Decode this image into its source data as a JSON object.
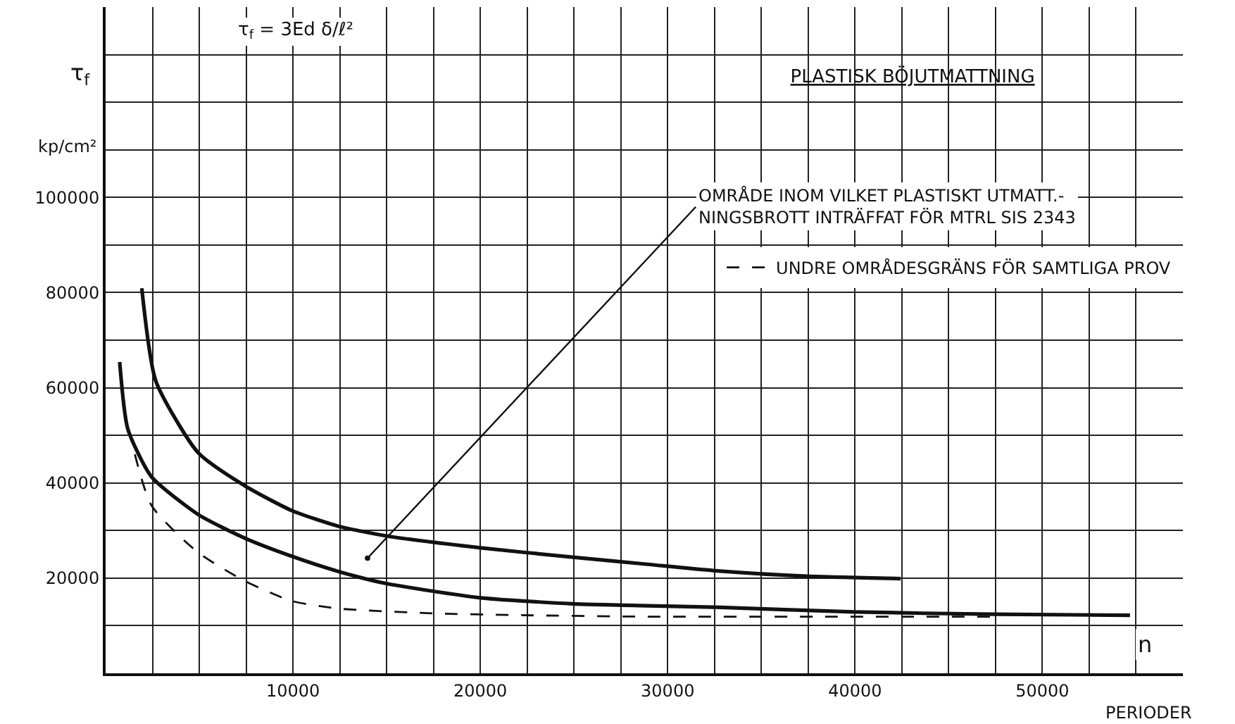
{
  "chart_data": {
    "type": "line",
    "title": "PLASTISK BÖJUTMATTNING",
    "xlabel": "n",
    "ylabel": "τ$_{f}$",
    "xlim": [
      0,
      57500
    ],
    "ylim": [
      0,
      140000
    ],
    "xticks": [
      {
        "value": 2500,
        "label": null
      },
      {
        "value": 5000,
        "label": null
      },
      {
        "value": 7500,
        "label": null
      },
      10000,
      {
        "value": 12500,
        "label": null
      },
      {
        "value": 15000,
        "label": null
      },
      {
        "value": 17500,
        "label": null
      },
      20000,
      {
        "value": 22500,
        "label": null
      },
      {
        "value": 25000,
        "label": null
      },
      {
        "value": 27500,
        "label": null
      },
      30000,
      {
        "value": 32500,
        "label": null
      },
      {
        "value": 35000,
        "label": null
      },
      {
        "value": 37500,
        "label": null
      },
      40000,
      {
        "value": 42500,
        "label": null
      },
      {
        "value": 45000,
        "label": null
      },
      {
        "value": 47500,
        "label": null
      },
      50000,
      {
        "value": 52500,
        "label": null
      },
      {
        "value": 55000,
        "label": null
      }
    ],
    "yticks": [
      {
        "value": 10000,
        "label": null
      },
      20000,
      {
        "value": 30000,
        "label": null
      },
      40000,
      {
        "value": 50000,
        "label": null
      },
      60000,
      {
        "value": 70000,
        "label": null
      },
      80000,
      {
        "value": 90000,
        "label": null
      },
      100000,
      {
        "value": 110000,
        "label": null
      },
      {
        "value": 120000,
        "label": null
      },
      {
        "value": 130000,
        "label": null
      }
    ],
    "grid": true,
    "legend": "top right",
    "marker": "none",
    "series": [
      {
        "color": "#111111",
        "line_style": "solid",
        "x": [
          1930,
          2680,
          4930,
          7430,
          9930,
          12430,
          14930,
          19930,
          24930,
          28930,
          32430,
          37430,
          42430
        ],
        "values": [
          80900,
          61400,
          46400,
          39400,
          34200,
          30900,
          28900,
          26400,
          24400,
          22900,
          21600,
          20400,
          19900
        ]
      },
      {
        "color": "#111111",
        "line_style": "solid",
        "x": [
          750,
          1180,
          2430,
          4930,
          7430,
          9930,
          12430,
          14930,
          19930,
          24930,
          28930,
          32430,
          39930,
          47430,
          54680
        ],
        "values": [
          65400,
          51400,
          41400,
          33400,
          28400,
          24600,
          21400,
          18900,
          15900,
          14600,
          14200,
          13900,
          12900,
          12400,
          12200
        ]
      },
      {
        "name": "UNDRE OMRÅDESGRÄNS FÖR SAMTLIGA PROV",
        "color": "#111111",
        "line_style": "dashed",
        "x": [
          930,
          2430,
          4930,
          7430,
          9930,
          12430,
          17430,
          22430,
          28930,
          38000,
          47200
        ],
        "values": [
          56400,
          35400,
          25400,
          19400,
          15200,
          13600,
          12600,
          12200,
          11900,
          11900,
          11900
        ]
      }
    ],
    "annotations": [
      {
        "text": "OMRÅDE INOM VILKET PLASTISKT UTMATT.-\nNINGSBROTT INTRÄFFAT FÖR MTRL SIS 2343",
        "x": 13980,
        "y": 24200
      },
      "τ$_{f}$ = 3Ed δ/ℓ²",
      "kp/cm²",
      "PERIODER"
    ]
  }
}
